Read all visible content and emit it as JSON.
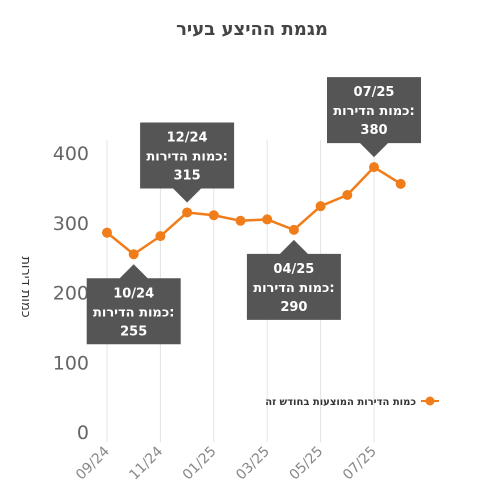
{
  "chart_data": {
    "type": "line",
    "title": "מגמת ההיצע בעיר",
    "ylabel": "כמות דירות",
    "xlabel": "",
    "ylim": [
      0,
      450
    ],
    "yticks": [
      0,
      100,
      200,
      300,
      400
    ],
    "grid": {
      "x": true,
      "y": false
    },
    "legend": {
      "position": "right",
      "label": "כמות הדירות המוצעות בחודש זה"
    },
    "x": [
      "09/24",
      "10/24",
      "11/24",
      "12/24",
      "01/25",
      "02/25",
      "03/25",
      "04/25",
      "05/25",
      "06/25",
      "07/25",
      "08/25"
    ],
    "xtick_labels": [
      "09/24",
      "11/24",
      "01/25",
      "03/25",
      "05/25",
      "07/25"
    ],
    "series": [
      {
        "name": "כמות הדירות המוצעות בחודש זה",
        "color": "#f07c1a",
        "values": [
          286,
          255,
          281,
          315,
          311,
          303,
          305,
          290,
          324,
          340,
          380,
          356
        ]
      }
    ],
    "annotations": [
      {
        "month": "12/24",
        "label": "כמות הדירות:",
        "value": "315",
        "placement": "above"
      },
      {
        "month": "10/24",
        "label": "כמות הדירות:",
        "value": "255",
        "placement": "below"
      },
      {
        "month": "04/25",
        "label": "כמות הדירות:",
        "value": "290",
        "placement": "below"
      },
      {
        "month": "07/25",
        "label": "כמות הדירות:",
        "value": "380",
        "placement": "above"
      }
    ]
  }
}
